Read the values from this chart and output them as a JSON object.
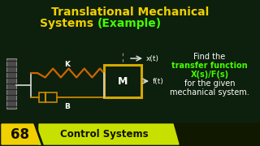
{
  "title_line1": "Translational Mechanical",
  "title_line2_yellow": "Systems ",
  "title_line2_green": "(Example)",
  "bg_color": "#0d1f0d",
  "title_color": "#f0d000",
  "green_color": "#44ff00",
  "right_find": "Find the",
  "right_tf": "transfer function",
  "right_xsfs": "X(s)/F(s)",
  "right_for": "for the given",
  "right_mech": "mechanical system.",
  "label_K": "K",
  "label_B": "B",
  "label_M": "M",
  "label_xt": "x(t)",
  "label_ft": "f(t)",
  "badge_number": "68",
  "badge_text": "Control Systems",
  "badge_yellow": "#f0d000",
  "badge_green": "#c8e000",
  "spring_color": "#cc6600",
  "mass_border": "#d4a800",
  "damper_color": "#c88800",
  "wire_color": "#cccccc",
  "wall_face": "#4a4a4a",
  "wall_edge": "#888888",
  "dashed_color": "#888888",
  "arrow_color": "#dddddd",
  "text_white": "#ffffff"
}
